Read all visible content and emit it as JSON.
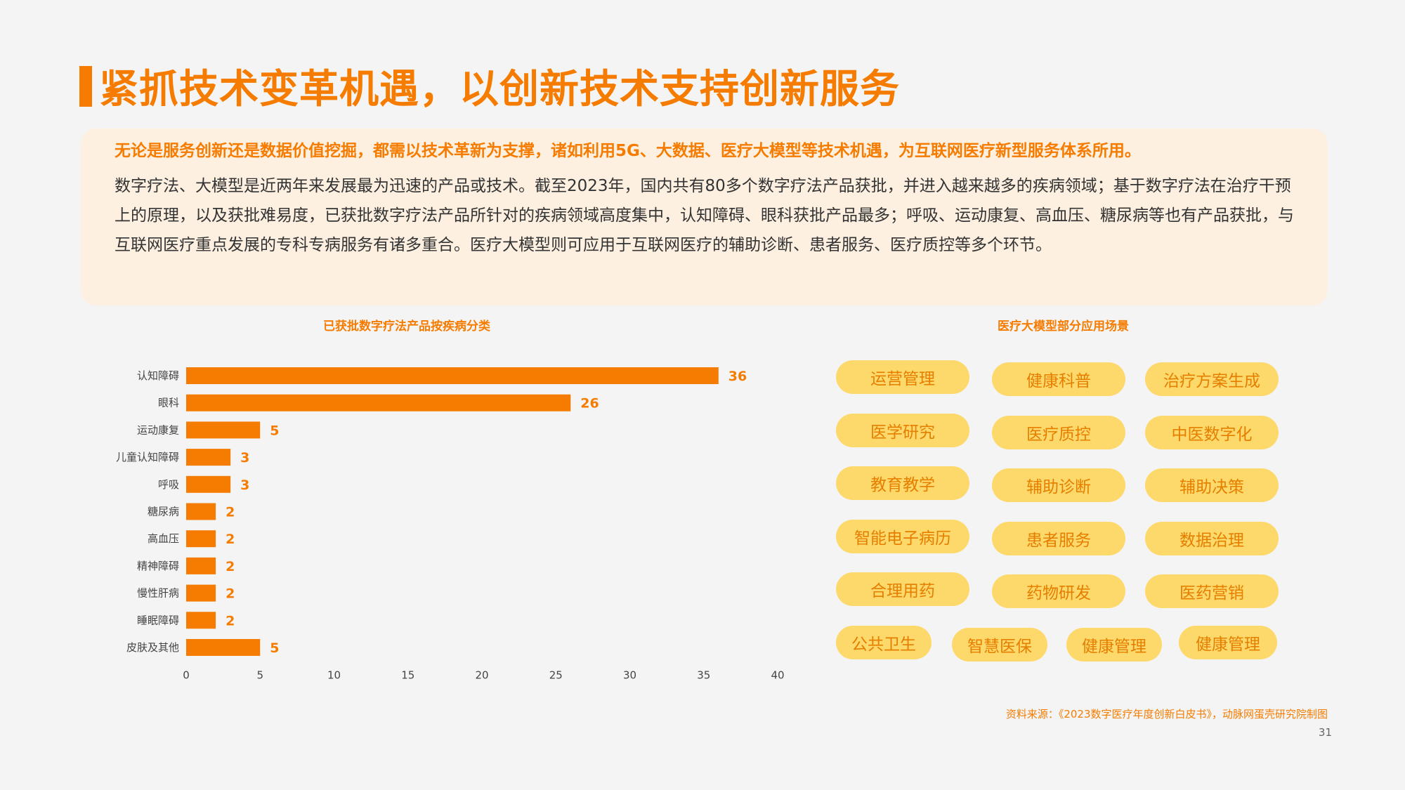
{
  "page": {
    "title": "紧抓技术变革机遇，以创新技术支持创新服务",
    "lead": "无论是服务创新还是数据价值挖掘，都需以技术革新为支撑，诸如利用5G、大数据、医疗大模型等技术机遇，为互联网医疗新型服务体系所用。",
    "body": "数字疗法、大模型是近两年来发展最为迅速的产品或技术。截至2023年，国内共有80多个数字疗法产品获批，并进入越来越多的疾病领域；基于数字疗法在治疗干预上的原理，以及获批难易度，已获批数字疗法产品所针对的疾病领域高度集中，认知障碍、眼科获批产品最多；呼吸、运动康复、高血压、糖尿病等也有产品获批，与互联网医疗重点发展的专科专病服务有诸多重合。医疗大模型则可应用于互联网医疗的辅助诊断、患者服务、医疗质控等多个环节。",
    "scene_title": "医疗大模型部分应用场景",
    "scenes": [
      "运营管理",
      "健康科普",
      "治疗方案生成",
      "医学研究",
      "医疗质控",
      "中医数字化",
      "教育教学",
      "辅助诊断",
      "辅助决策",
      "智能电子病历",
      "患者服务",
      "数据治理",
      "合理用药",
      "药物研发",
      "医药营销",
      "公共卫生",
      "智慧医保",
      "健康管理",
      "健康管理"
    ],
    "source": "资料来源：《2023数字医疗年度创新白皮书》，动脉网蛋壳研究院制图",
    "page_number": "31"
  },
  "colors": {
    "accent": "#f57c00",
    "pill": "#fcd96a",
    "panel": "#fdf0e1"
  },
  "chart_data": {
    "type": "bar",
    "orientation": "horizontal",
    "title": "已获批数字疗法产品按疾病分类",
    "categories": [
      "认知障碍",
      "眼科",
      "运动康复",
      "儿童认知障碍",
      "呼吸",
      "糖尿病",
      "高血压",
      "精神障碍",
      "慢性肝病",
      "睡眠障碍",
      "皮肤及其他"
    ],
    "values": [
      36,
      26,
      5,
      3,
      3,
      2,
      2,
      2,
      2,
      2,
      5
    ],
    "xlim": [
      0,
      40
    ],
    "xticks": [
      0,
      5,
      10,
      15,
      20,
      25,
      30,
      35,
      40
    ],
    "grid": false,
    "legend": false
  }
}
